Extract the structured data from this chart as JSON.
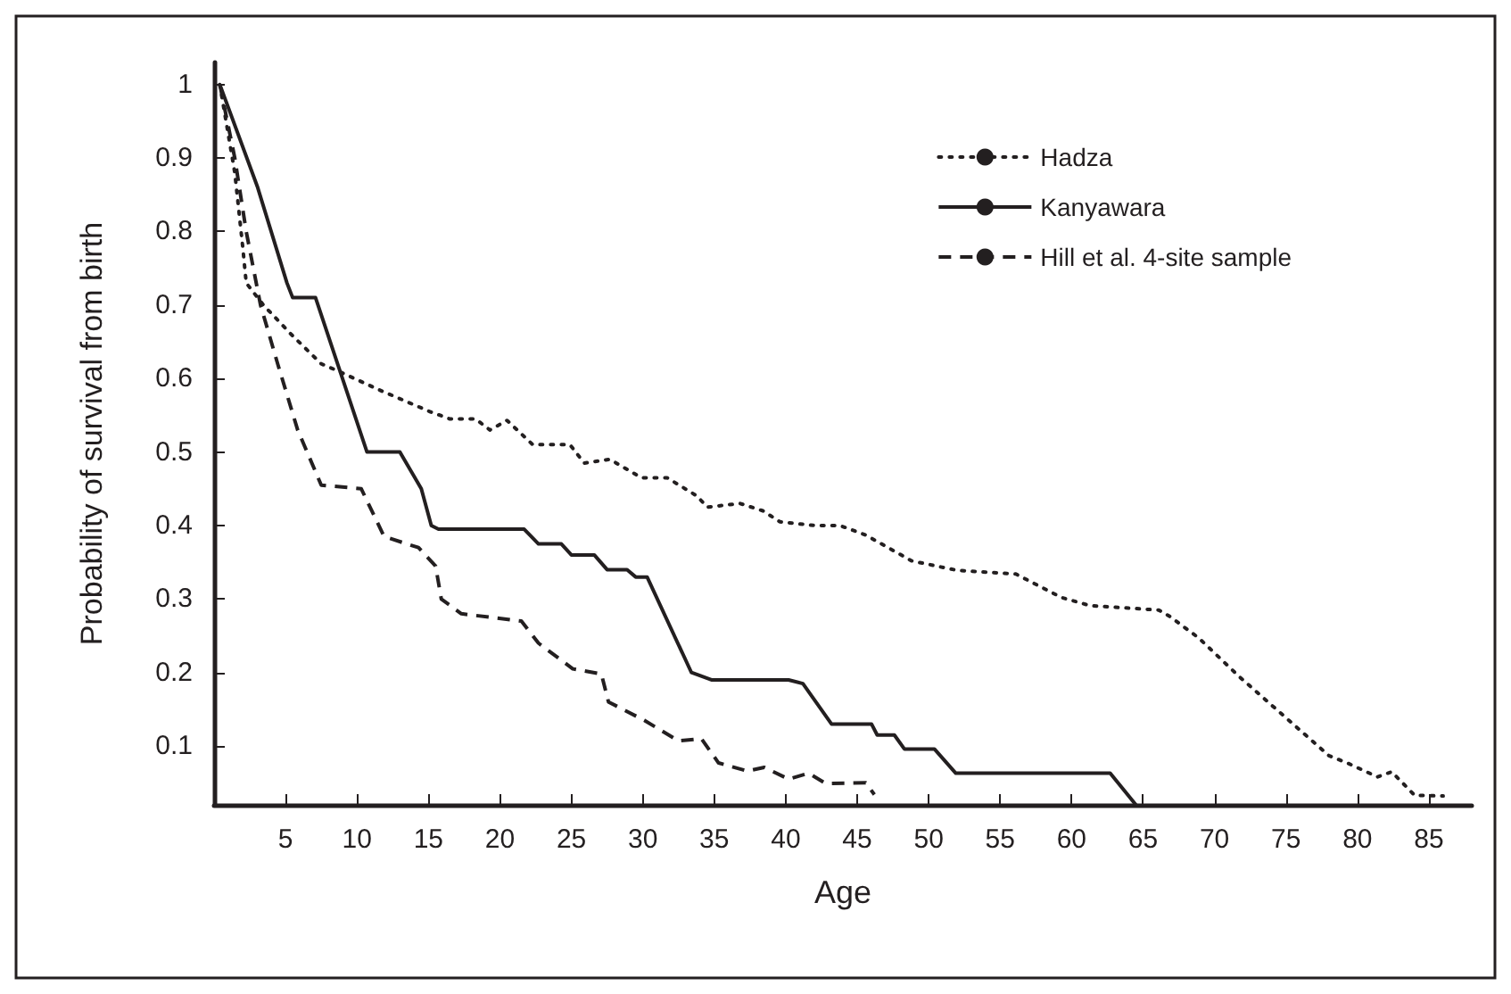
{
  "chart_data": {
    "type": "line",
    "xlabel": "Age",
    "ylabel": "Probability of survival from birth",
    "xlim": [
      0,
      88
    ],
    "ylim": [
      0.02,
      1.03
    ],
    "xticks": [
      5,
      10,
      15,
      20,
      25,
      30,
      35,
      40,
      45,
      50,
      55,
      60,
      65,
      70,
      75,
      80,
      85
    ],
    "yticks": [
      0.1,
      0.2,
      0.3,
      0.4,
      0.5,
      0.6,
      0.7,
      0.8,
      0.9,
      1
    ],
    "grid": false,
    "legend": "top right",
    "marker": "none",
    "series": [
      {
        "name": "Hadza",
        "color": "#231f20",
        "line_style": "dotted",
        "x": [
          0.4,
          1.45,
          2.0,
          2.25,
          3.45,
          5.4,
          7.5,
          8.7,
          11.5,
          15.1,
          16.5,
          18.3,
          19.3,
          20.5,
          22.3,
          24.9,
          25.9,
          27.7,
          29.9,
          31.7,
          33.8,
          34.5,
          36.8,
          38.4,
          39.6,
          42.0,
          43.8,
          45.6,
          48.8,
          52.0,
          56.1,
          59.3,
          61.3,
          66.1,
          66.9,
          68.9,
          71.7,
          74.5,
          78.0,
          79.4,
          81.4,
          82.4,
          84.0,
          86.0
        ],
        "values": [
          1.0,
          0.88,
          0.78,
          0.73,
          0.7,
          0.66,
          0.62,
          0.61,
          0.585,
          0.555,
          0.545,
          0.545,
          0.53,
          0.543,
          0.51,
          0.51,
          0.485,
          0.49,
          0.465,
          0.465,
          0.44,
          0.425,
          0.43,
          0.42,
          0.405,
          0.4,
          0.4,
          0.387,
          0.352,
          0.339,
          0.334,
          0.302,
          0.291,
          0.285,
          0.276,
          0.247,
          0.195,
          0.147,
          0.087,
          0.076,
          0.058,
          0.065,
          0.033,
          0.032
        ]
      },
      {
        "name": "Kanyawara",
        "color": "#231f20",
        "line_style": "solid",
        "x": [
          0.4,
          3.05,
          5.1,
          5.5,
          7.1,
          10.7,
          13.0,
          13.9,
          14.5,
          15.2,
          15.7,
          21.7,
          22.7,
          24.3,
          25.0,
          26.6,
          27.5,
          28.9,
          29.5,
          30.3,
          33.4,
          34.8,
          40.2,
          41.2,
          43.2,
          46.0,
          46.4,
          47.6,
          48.3,
          50.4,
          51.9,
          62.7,
          64.5
        ],
        "values": [
          1.0,
          0.86,
          0.73,
          0.71,
          0.71,
          0.5,
          0.5,
          0.47,
          0.45,
          0.4,
          0.395,
          0.395,
          0.375,
          0.375,
          0.36,
          0.36,
          0.34,
          0.34,
          0.33,
          0.33,
          0.2,
          0.19,
          0.19,
          0.185,
          0.13,
          0.13,
          0.115,
          0.115,
          0.096,
          0.096,
          0.063,
          0.063,
          0.02
        ]
      },
      {
        "name": "Hill et al. 4-site sample",
        "color": "#231f20",
        "line_style": "dashed",
        "x": [
          0.4,
          1.45,
          2.25,
          3.25,
          4.45,
          5.85,
          7.5,
          10.3,
          11.9,
          14.3,
          15.5,
          15.9,
          17.3,
          21.5,
          22.7,
          25.1,
          27.1,
          27.6,
          30.1,
          32.5,
          34.1,
          35.3,
          37.3,
          38.5,
          40.2,
          41.6,
          42.8,
          45.6,
          46.2
        ],
        "values": [
          1.0,
          0.9,
          0.8,
          0.7,
          0.62,
          0.53,
          0.455,
          0.45,
          0.385,
          0.37,
          0.345,
          0.3,
          0.28,
          0.27,
          0.24,
          0.205,
          0.198,
          0.16,
          0.135,
          0.107,
          0.11,
          0.077,
          0.066,
          0.071,
          0.055,
          0.063,
          0.049,
          0.05,
          0.034
        ]
      }
    ]
  }
}
